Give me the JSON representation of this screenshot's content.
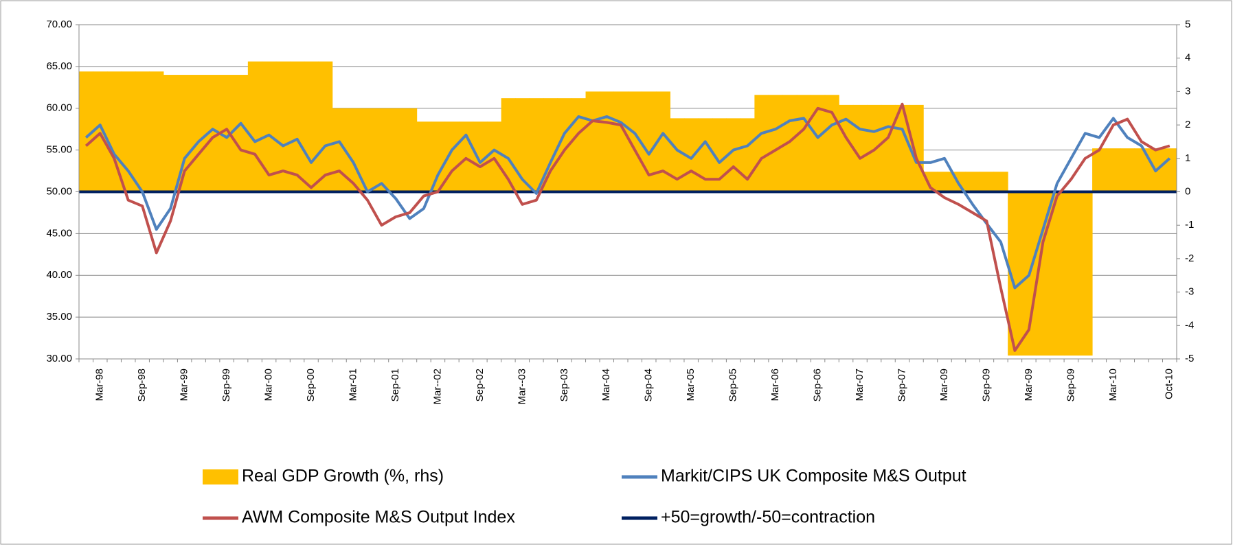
{
  "chart_data": {
    "type": "combo",
    "categories": [
      null,
      "Mar-98",
      null,
      null,
      "Sep-98",
      null,
      null,
      "Mar-99",
      null,
      null,
      "Sep-99",
      null,
      null,
      "Mar-00",
      null,
      null,
      "Sep-00",
      null,
      null,
      "Mar-01",
      null,
      null,
      "Sep-01",
      null,
      null,
      "Mar--02",
      null,
      null,
      "Sep-02",
      null,
      null,
      "Mar--03",
      null,
      null,
      "Sep-03",
      null,
      null,
      "Mar-04",
      null,
      null,
      "Sep-04",
      null,
      null,
      "Mar-05",
      null,
      null,
      "Sep-05",
      null,
      null,
      "Mar-06",
      null,
      null,
      "Sep-06",
      null,
      null,
      "Mar-07",
      null,
      null,
      "Sep-07",
      null,
      null,
      "Mar-09",
      null,
      null,
      "Sep-09",
      null,
      null,
      "Mar-09",
      null,
      null,
      "Sep-09",
      null,
      null,
      "Mar-10",
      null,
      null,
      null,
      "Oct-10"
    ],
    "series": [
      {
        "name": "Real GDP Growth (%, rhs)",
        "type": "bar",
        "axis": "y2",
        "color": "#FFC000",
        "values": [
          3.6,
          3.6,
          3.6,
          3.6,
          3.6,
          3.6,
          3.5,
          3.5,
          3.5,
          3.5,
          3.5,
          3.5,
          3.9,
          3.9,
          3.9,
          3.9,
          3.9,
          3.9,
          2.5,
          2.5,
          2.5,
          2.5,
          2.5,
          2.5,
          2.1,
          2.1,
          2.1,
          2.1,
          2.1,
          2.1,
          2.8,
          2.8,
          2.8,
          2.8,
          2.8,
          2.8,
          3.0,
          3.0,
          3.0,
          3.0,
          3.0,
          3.0,
          2.2,
          2.2,
          2.2,
          2.2,
          2.2,
          2.2,
          2.9,
          2.9,
          2.9,
          2.9,
          2.9,
          2.9,
          2.6,
          2.6,
          2.6,
          2.6,
          2.6,
          2.6,
          0.6,
          0.6,
          0.6,
          0.6,
          0.6,
          0.6,
          -4.9,
          -4.9,
          -4.9,
          -4.9,
          -4.9,
          -4.9,
          1.3,
          1.3,
          1.3,
          1.3,
          1.3,
          1.3
        ]
      },
      {
        "name": "Markit/CIPS UK Composite M&S Output",
        "type": "line",
        "color": "#4F81BD",
        "values": [
          56.5,
          58,
          54.5,
          52.5,
          50,
          45.5,
          48,
          54,
          56,
          57.5,
          56.5,
          58.2,
          56,
          56.8,
          55.5,
          56.3,
          53.5,
          55.5,
          56,
          53.5,
          50,
          51,
          49.2,
          46.8,
          48,
          52,
          55,
          56.8,
          53.5,
          55,
          54,
          51.5,
          49.8,
          53.5,
          57,
          59,
          58.5,
          59,
          58.3,
          57,
          54.5,
          57,
          55,
          54,
          56,
          53.5,
          55,
          55.5,
          57,
          57.5,
          58.5,
          58.8,
          56.5,
          58,
          58.7,
          57.5,
          57.2,
          57.8,
          57.5,
          53.5,
          53.5,
          54,
          51,
          48.5,
          46.2,
          44,
          38.5,
          40,
          45.5,
          51,
          54,
          57,
          56.5,
          58.8,
          56.5,
          55.5,
          52.5,
          54
        ]
      },
      {
        "name": "AWM Composite M&S Output Index",
        "type": "line",
        "color": "#C0504D",
        "values": [
          55.5,
          57,
          54,
          49,
          48.3,
          42.7,
          46.5,
          52.5,
          54.5,
          56.5,
          57.5,
          55,
          54.5,
          52,
          52.5,
          52,
          50.5,
          52,
          52.5,
          51,
          49,
          46,
          47,
          47.5,
          49.5,
          50,
          52.5,
          54,
          53,
          54,
          51.5,
          48.5,
          49,
          52.5,
          55,
          57,
          58.5,
          58.3,
          58,
          55,
          52,
          52.5,
          51.5,
          52.5,
          51.5,
          51.5,
          53,
          51.5,
          54,
          55,
          56,
          57.5,
          60,
          59.5,
          56.5,
          54,
          55,
          56.5,
          60.5,
          54,
          50.5,
          49.3,
          48.5,
          47.5,
          46.5,
          38.5,
          31,
          33.5,
          44,
          49.5,
          51.5,
          54,
          55,
          58,
          58.7,
          56,
          55,
          55.5
        ]
      }
    ],
    "reference_line": {
      "name": "+50=growth/-50=contraction",
      "value": 50,
      "color": "#002060"
    },
    "ylim": [
      30,
      70
    ],
    "yticks": [
      {
        "value": 30,
        "label": "30.00"
      },
      {
        "value": 35,
        "label": "35.00"
      },
      {
        "value": 40,
        "label": "40.00"
      },
      {
        "value": 45,
        "label": "45.00"
      },
      {
        "value": 50,
        "label": "50.00"
      },
      {
        "value": 55,
        "label": "55.00"
      },
      {
        "value": 60,
        "label": "60.00"
      },
      {
        "value": 65,
        "label": "65.00"
      },
      {
        "value": 70,
        "label": "70.00"
      }
    ],
    "y2lim": [
      -5,
      5
    ],
    "y2ticks": [
      -5,
      -4,
      -3,
      -2,
      -1,
      0,
      1,
      2,
      3,
      4,
      5
    ],
    "grid": true
  }
}
